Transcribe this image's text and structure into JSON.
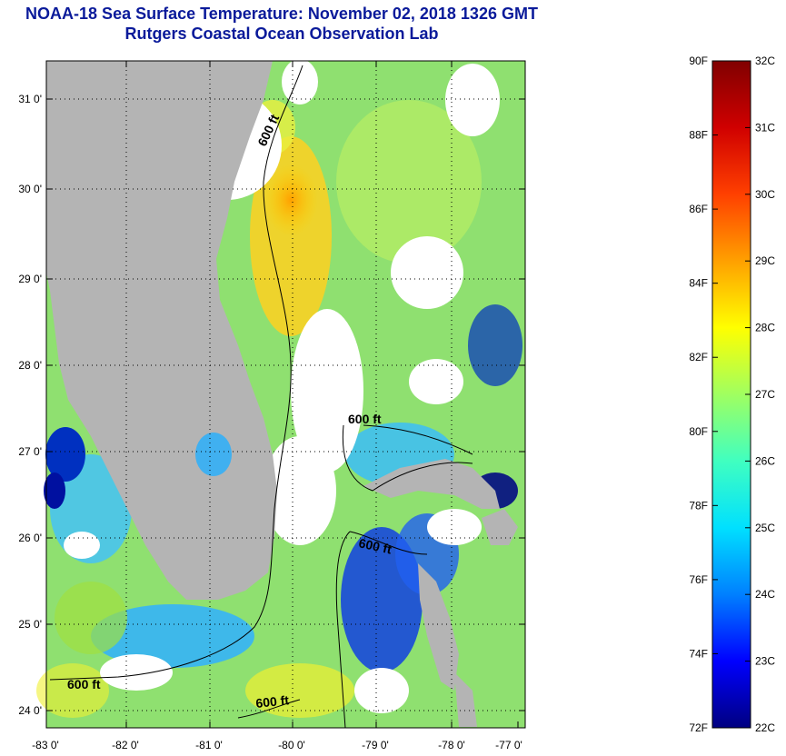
{
  "title": "NOAA-18 Sea Surface Temperature:  November 02, 2018 1326 GMT",
  "subtitle": "Rutgers Coastal Ocean Observation Lab",
  "map": {
    "lon_ticks": [
      "-83 0'",
      "-82 0'",
      "-81 0'",
      "-80 0'",
      "-79 0'",
      "-78 0'",
      "-77 0'"
    ],
    "lat_ticks": [
      "24 0'",
      "25 0'",
      "26 0'",
      "27 0'",
      "28 0'",
      "29 0'",
      "30 0'",
      "31 0'"
    ],
    "contour_labels": [
      "600 ft",
      "600 ft",
      "600 ft",
      "600 ft",
      "600 ft"
    ]
  },
  "colorbar": {
    "fahrenheit_labels": [
      "90F",
      "88F",
      "86F",
      "84F",
      "82F",
      "80F",
      "78F",
      "76F",
      "74F",
      "72F"
    ],
    "celsius_labels": [
      "32C",
      "31C",
      "30C",
      "29C",
      "28C",
      "27C",
      "26C",
      "25C",
      "24C",
      "23C",
      "22C"
    ],
    "colors": [
      "#000080",
      "#0000ff",
      "#0080ff",
      "#00e0ff",
      "#40ffc0",
      "#a0ff60",
      "#ffff00",
      "#ffa000",
      "#ff4000",
      "#d00000",
      "#800000"
    ]
  }
}
